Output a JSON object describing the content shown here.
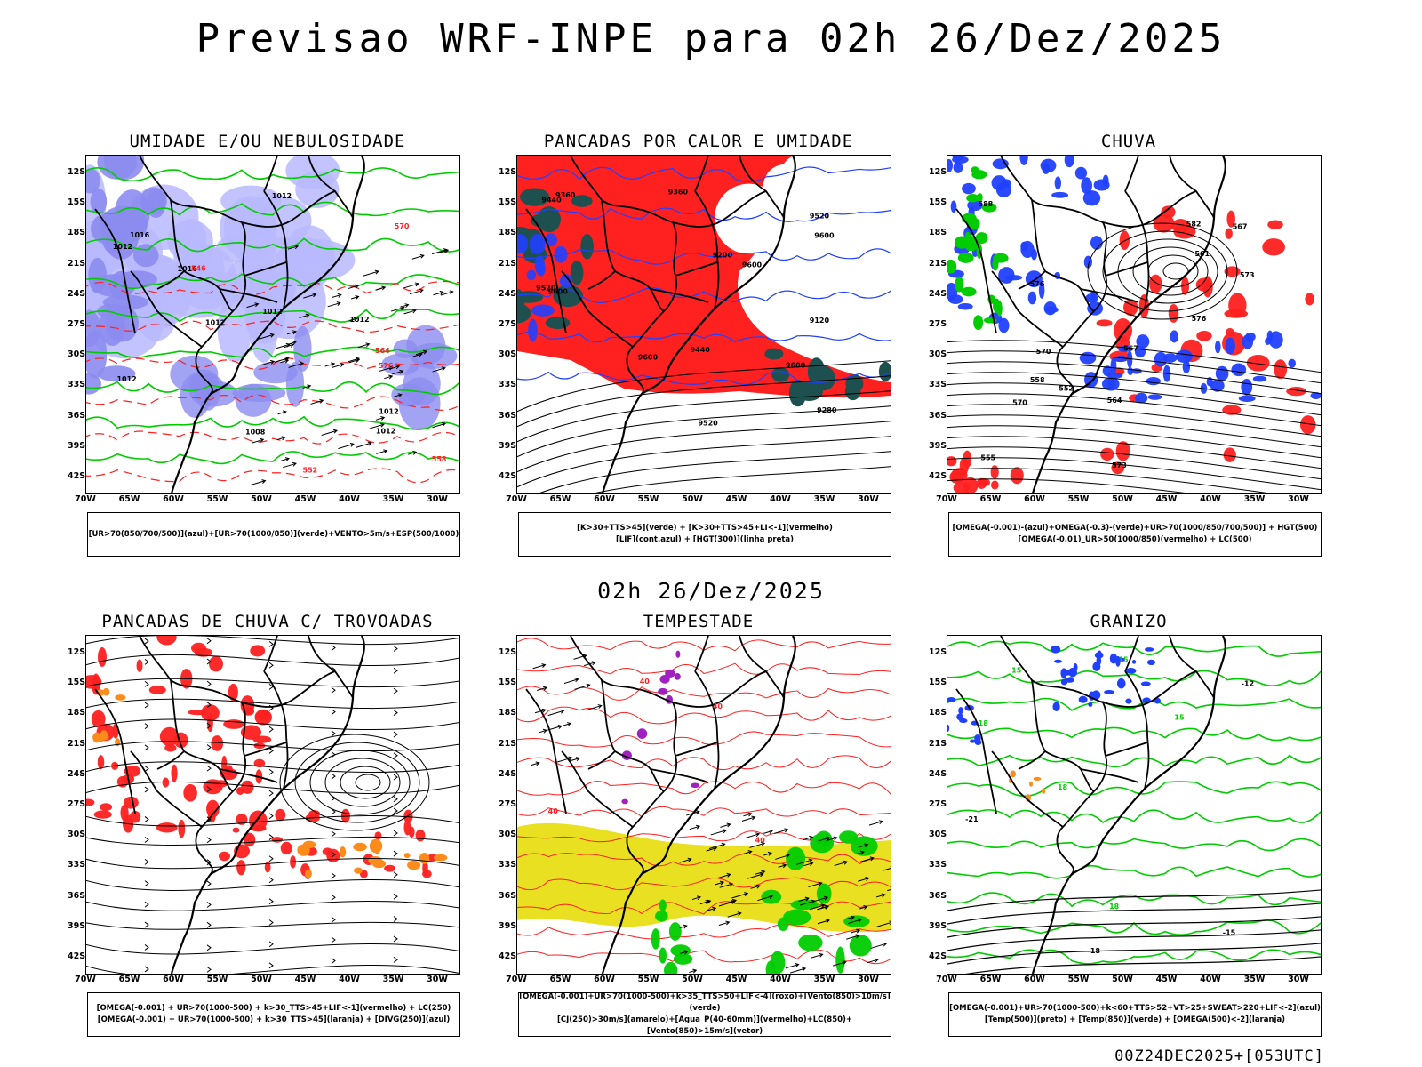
{
  "header": {
    "title": "Previsao WRF-INPE  para 02h 26/Dez/2025"
  },
  "mid": {
    "title": "02h 26/Dez/2025"
  },
  "footer": {
    "run_info": "00Z24DEC2025+[053UTC]"
  },
  "axes": {
    "lat_labels": [
      "12S",
      "15S",
      "18S",
      "21S",
      "24S",
      "27S",
      "30S",
      "33S",
      "36S",
      "39S",
      "42S"
    ],
    "lon_labels": [
      "70W",
      "65W",
      "60W",
      "55W",
      "50W",
      "45W",
      "40W",
      "35W",
      "30W"
    ]
  },
  "colors": {
    "red": "#ff2020",
    "blue": "#2040ff",
    "light_blue": "#b8b8ff",
    "green": "#00cc00",
    "dark_teal": "#1e5050",
    "yellow": "#e8e020",
    "orange": "#ff8c1a",
    "purple": "#a020c0"
  },
  "panels": [
    {
      "title": "UMIDADE E/OU NEBULOSIDADE",
      "legend": [
        "[UR>70(850/700/500)](azul)+[UR>70(1000/850)](verde)+VENTO>5m/s+ESP(500/1000)"
      ],
      "contour_labels": [
        "1012",
        "1012",
        "1012",
        "1016",
        "1012",
        "1012",
        "1012",
        "1012",
        "1012",
        "1016",
        "1008",
        "570",
        "576",
        "564",
        "558",
        "552",
        "546"
      ]
    },
    {
      "title": "PANCADAS POR CALOR E UMIDADE",
      "legend": [
        "[K>30+TTS>45](verde) + [K>30+TTS>45+LI<-1](vermelho)",
        "[LIF](cont.azul) + [HGT(300)](linha preta)"
      ],
      "contour_labels": [
        "9600",
        "9600",
        "9600",
        "9520",
        "9600",
        "9520",
        "9600",
        "9520",
        "9440",
        "9360",
        "9280",
        "9200",
        "9120",
        "9440",
        "9360"
      ]
    },
    {
      "title": "CHUVA",
      "legend": [
        "[OMEGA(-0.001)-(azul)+OMEGA(-0.3)-(verde)+UR>70(1000/850/700/500)] + HGT(500)",
        "[OMEGA(-0.01)_UR>50(1000/850)(vermelho) + LC(500)"
      ],
      "contour_labels": [
        "588",
        "582",
        "576",
        "573",
        "570",
        "567",
        "564",
        "561",
        "558",
        "555",
        "552",
        "576",
        "573",
        "570",
        "567"
      ]
    },
    {
      "title": "PANCADAS DE CHUVA C/ TROVOADAS",
      "legend": [
        "[OMEGA(-0.001) + UR>70(1000-500) + k>30_TTS>45+LIF<-1](vermelho) + LC(250)",
        "[OMEGA(-0.001) + UR>70(1000-500) + k>30_TTS>45](laranja) + [DIVG(250)](azul)"
      ],
      "contour_labels": []
    },
    {
      "title": "TEMPESTADE",
      "legend": [
        "[OMEGA(-0.001)+UR>70(1000-500)+k>35_TTS>50+LIF<-4](roxo)+[Vento(850)>10m/s](verde)",
        "[CJ(250)>30m/s](amarelo)+[Agua_P(40-60mm)](vermelho)+LC(850)+[Vento(850)>15m/s](vetor)"
      ],
      "contour_labels": [
        "40",
        "40",
        "40",
        "40"
      ]
    },
    {
      "title": "GRANIZO",
      "legend": [
        "[OMEGA(-0.001)+UR>70(1000-500)+k<60+TTS>52+VT>25+SWEAT>220+LIF<-2](azul)",
        "[Temp(500)](preto) + [Temp(850)](verde) + [OMEGA(500)<-2](laranja)"
      ],
      "contour_labels": [
        "18",
        "15",
        "15",
        "18",
        "15",
        "18",
        "-12",
        "-15",
        "-18",
        "-21"
      ]
    }
  ]
}
